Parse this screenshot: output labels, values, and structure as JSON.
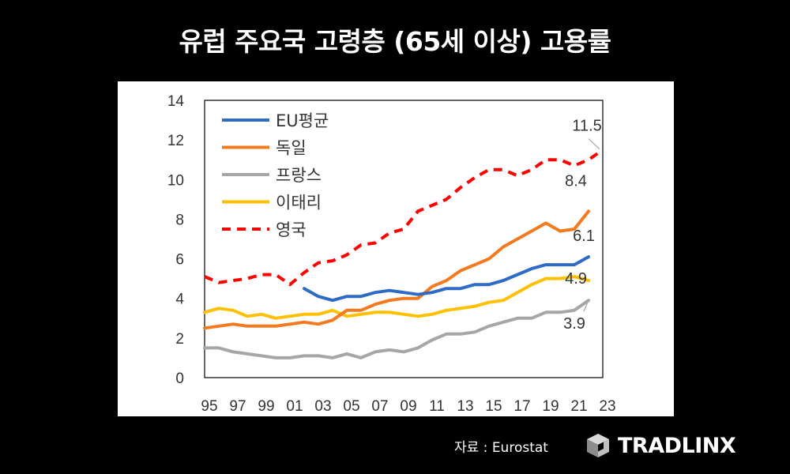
{
  "header": {
    "title": "유럽 주요국 고령층 (65세 이상) 고용률"
  },
  "footer": {
    "source": "자료 : Eurostat",
    "brand": "TRADLINX"
  },
  "chart_data": {
    "type": "line",
    "title": "",
    "xlabel": "",
    "ylabel": "",
    "x": [
      1995,
      1996,
      1997,
      1998,
      1999,
      2000,
      2001,
      2002,
      2003,
      2004,
      2005,
      2006,
      2007,
      2008,
      2009,
      2010,
      2011,
      2012,
      2013,
      2014,
      2015,
      2016,
      2017,
      2018,
      2019,
      2020,
      2021,
      2022,
      2023
    ],
    "x_tick_labels": [
      "95",
      "97",
      "99",
      "01",
      "03",
      "05",
      "07",
      "09",
      "11",
      "13",
      "15",
      "17",
      "19",
      "21",
      "23"
    ],
    "x_tick_values": [
      1995,
      1997,
      1999,
      2001,
      2003,
      2005,
      2007,
      2009,
      2011,
      2013,
      2015,
      2017,
      2019,
      2021,
      2023
    ],
    "xlim": [
      1995,
      2023
    ],
    "ylim": [
      0,
      14
    ],
    "y_ticks": [
      0,
      2,
      4,
      6,
      8,
      10,
      12,
      14
    ],
    "grid": false,
    "legend_position": "top-left",
    "series": [
      {
        "name": "EU평균",
        "color": "#2E6BC6",
        "style": "solid",
        "values": [
          null,
          null,
          null,
          null,
          null,
          null,
          null,
          4.5,
          4.1,
          3.9,
          4.1,
          4.1,
          4.3,
          4.4,
          4.3,
          4.2,
          4.3,
          4.5,
          4.5,
          4.7,
          4.7,
          4.9,
          5.2,
          5.5,
          5.7,
          5.7,
          5.7,
          6.1,
          null
        ],
        "end_label": "6.1"
      },
      {
        "name": "독일",
        "color": "#F47A20",
        "style": "solid",
        "values": [
          2.5,
          2.6,
          2.7,
          2.6,
          2.6,
          2.6,
          2.7,
          2.8,
          2.7,
          2.9,
          3.4,
          3.4,
          3.7,
          3.9,
          4.0,
          4.0,
          4.6,
          4.9,
          5.4,
          5.7,
          6.0,
          6.6,
          7.0,
          7.4,
          7.8,
          7.4,
          7.5,
          8.4,
          null
        ],
        "end_label": "8.4"
      },
      {
        "name": "프랑스",
        "color": "#A6A6A6",
        "style": "solid",
        "values": [
          1.5,
          1.5,
          1.3,
          1.2,
          1.1,
          1.0,
          1.0,
          1.1,
          1.1,
          1.0,
          1.2,
          1.0,
          1.3,
          1.4,
          1.3,
          1.5,
          1.9,
          2.2,
          2.2,
          2.3,
          2.6,
          2.8,
          3.0,
          3.0,
          3.3,
          3.3,
          3.4,
          3.9,
          null
        ],
        "end_label": "3.9"
      },
      {
        "name": "이태리",
        "color": "#FFC000",
        "style": "solid",
        "values": [
          3.3,
          3.5,
          3.4,
          3.1,
          3.2,
          3.0,
          3.1,
          3.2,
          3.2,
          3.4,
          3.1,
          3.2,
          3.3,
          3.3,
          3.2,
          3.1,
          3.2,
          3.4,
          3.5,
          3.6,
          3.8,
          3.9,
          4.3,
          4.7,
          5.0,
          5.0,
          5.1,
          4.9,
          null
        ],
        "end_label": "4.9"
      },
      {
        "name": "영국",
        "color": "#FF0000",
        "style": "dashed",
        "values": [
          5.1,
          4.8,
          4.9,
          5.0,
          5.2,
          5.2,
          4.7,
          5.3,
          5.8,
          5.9,
          6.2,
          6.7,
          6.8,
          7.3,
          7.5,
          8.4,
          8.7,
          9.0,
          9.6,
          10.1,
          10.5,
          10.5,
          10.2,
          10.5,
          11.0,
          11.0,
          10.7,
          11.0,
          11.5
        ],
        "end_label": "11.5"
      }
    ]
  }
}
